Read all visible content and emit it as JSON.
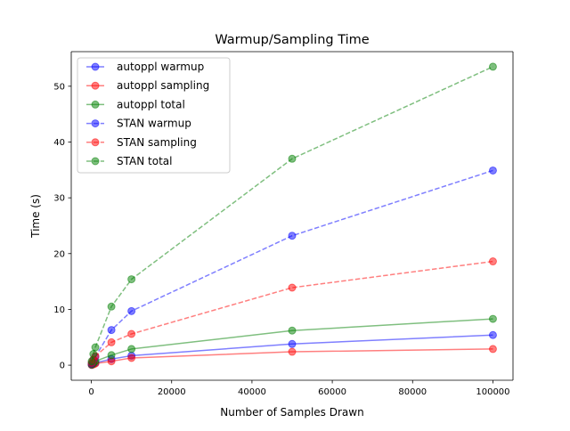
{
  "chart_data": {
    "type": "line",
    "title": "Warmup/Sampling Time",
    "xlabel": "Number of Samples Drawn",
    "ylabel": "Time (s)",
    "xlim": [
      -5000,
      105000
    ],
    "ylim": [
      -2.7,
      56.2
    ],
    "xticks": [
      0,
      20000,
      40000,
      60000,
      80000,
      100000
    ],
    "xtick_labels": [
      "0",
      "20000",
      "40000",
      "60000",
      "80000",
      "100000"
    ],
    "yticks": [
      0,
      10,
      20,
      30,
      40,
      50
    ],
    "ytick_labels": [
      "0",
      "10",
      "20",
      "30",
      "40",
      "50"
    ],
    "grid": false,
    "legend_position": "top-left",
    "series": [
      {
        "name": "autoppl warmup",
        "color": "#0000ff",
        "style": "solid",
        "x": [
          100,
          500,
          1000,
          5000,
          10000,
          50000,
          100000
        ],
        "y": [
          0.05,
          0.2,
          0.4,
          1.1,
          1.7,
          3.8,
          5.4
        ]
      },
      {
        "name": "autoppl sampling",
        "color": "#ff0000",
        "style": "solid",
        "x": [
          100,
          500,
          1000,
          5000,
          10000,
          50000,
          100000
        ],
        "y": [
          0.05,
          0.15,
          0.3,
          0.7,
          1.3,
          2.4,
          2.9
        ]
      },
      {
        "name": "autoppl total",
        "color": "#008000",
        "style": "solid",
        "x": [
          100,
          500,
          1000,
          5000,
          10000,
          50000,
          100000
        ],
        "y": [
          0.1,
          0.35,
          0.7,
          1.8,
          2.9,
          6.2,
          8.3
        ]
      },
      {
        "name": "STAN warmup",
        "color": "#0000ff",
        "style": "dashed",
        "x": [
          100,
          500,
          1000,
          5000,
          10000,
          50000,
          100000
        ],
        "y": [
          0.3,
          1.0,
          1.5,
          6.3,
          9.7,
          23.2,
          34.9
        ]
      },
      {
        "name": "STAN sampling",
        "color": "#ff0000",
        "style": "dashed",
        "x": [
          100,
          500,
          1000,
          5000,
          10000,
          50000,
          100000
        ],
        "y": [
          0.4,
          1.0,
          1.6,
          4.1,
          5.6,
          13.9,
          18.6
        ]
      },
      {
        "name": "STAN total",
        "color": "#008000",
        "style": "dashed",
        "x": [
          100,
          500,
          1000,
          5000,
          10000,
          50000,
          100000
        ],
        "y": [
          0.7,
          2.0,
          3.2,
          10.5,
          15.4,
          37.0,
          53.5
        ]
      }
    ]
  }
}
